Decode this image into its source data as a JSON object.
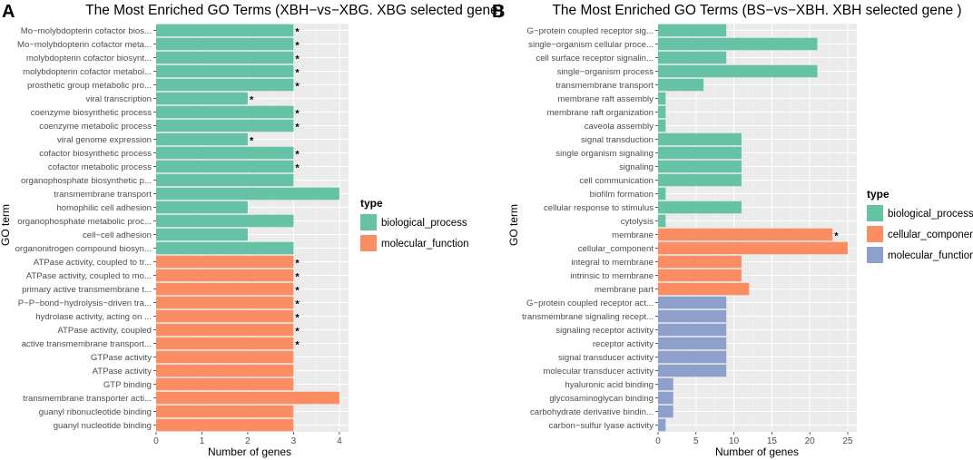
{
  "chart_data": [
    {
      "panel": "A",
      "type": "bar",
      "orientation": "horizontal",
      "title": "The Most Enriched GO Terms (XBH−vs−XBG. XBG selected gene)",
      "xlabel": "Number of genes",
      "ylabel": "GO term",
      "xlim": [
        0,
        4.2
      ],
      "xticks": [
        0,
        1,
        2,
        3,
        4
      ],
      "legend_title": "type",
      "legend": [
        {
          "label": "biological_process",
          "color": "#66C2A5"
        },
        {
          "label": "molecular_function",
          "color": "#FC8D62"
        }
      ],
      "bars": [
        {
          "term": "Mo−molybdopterin cofactor bios...",
          "value": 3,
          "type": "biological_process",
          "mark": "*"
        },
        {
          "term": "Mo−molybdopterin cofactor meta...",
          "value": 3,
          "type": "biological_process",
          "mark": "*"
        },
        {
          "term": "molybdopterin cofactor biosynt...",
          "value": 3,
          "type": "biological_process",
          "mark": "*"
        },
        {
          "term": "molybdopterin cofactor metabol...",
          "value": 3,
          "type": "biological_process",
          "mark": "*"
        },
        {
          "term": "prosthetic group metabolic pro...",
          "value": 3,
          "type": "biological_process",
          "mark": "*"
        },
        {
          "term": "viral transcription",
          "value": 2,
          "type": "biological_process",
          "mark": "*"
        },
        {
          "term": "coenzyme biosynthetic process",
          "value": 3,
          "type": "biological_process",
          "mark": "*"
        },
        {
          "term": "coenzyme metabolic process",
          "value": 3,
          "type": "biological_process",
          "mark": "*"
        },
        {
          "term": "viral genome expression",
          "value": 2,
          "type": "biological_process",
          "mark": "*"
        },
        {
          "term": "cofactor biosynthetic process",
          "value": 3,
          "type": "biological_process",
          "mark": "*"
        },
        {
          "term": "cofactor metabolic process",
          "value": 3,
          "type": "biological_process",
          "mark": "*"
        },
        {
          "term": "organophosphate biosynthetic p...",
          "value": 3,
          "type": "biological_process",
          "mark": ""
        },
        {
          "term": "transmembrane transport",
          "value": 4,
          "type": "biological_process",
          "mark": ""
        },
        {
          "term": "homophilic cell adhesion",
          "value": 2,
          "type": "biological_process",
          "mark": ""
        },
        {
          "term": "organophosphate metabolic proc...",
          "value": 3,
          "type": "biological_process",
          "mark": ""
        },
        {
          "term": "cell−cell adhesion",
          "value": 2,
          "type": "biological_process",
          "mark": ""
        },
        {
          "term": "organonitrogen compound biosyn...",
          "value": 3,
          "type": "biological_process",
          "mark": ""
        },
        {
          "term": "ATPase activity, coupled to tr...",
          "value": 3,
          "type": "molecular_function",
          "mark": "*"
        },
        {
          "term": "ATPase activity, coupled to mo...",
          "value": 3,
          "type": "molecular_function",
          "mark": "*"
        },
        {
          "term": "primary active transmembrane t...",
          "value": 3,
          "type": "molecular_function",
          "mark": "*"
        },
        {
          "term": "P−P−bond−hydrolysis−driven tra...",
          "value": 3,
          "type": "molecular_function",
          "mark": "*"
        },
        {
          "term": "hydrolase activity, acting on ...",
          "value": 3,
          "type": "molecular_function",
          "mark": "*"
        },
        {
          "term": "ATPase activity, coupled",
          "value": 3,
          "type": "molecular_function",
          "mark": "*"
        },
        {
          "term": "active transmembrane transport...",
          "value": 3,
          "type": "molecular_function",
          "mark": "*"
        },
        {
          "term": "GTPase activity",
          "value": 3,
          "type": "molecular_function",
          "mark": ""
        },
        {
          "term": "ATPase activity",
          "value": 3,
          "type": "molecular_function",
          "mark": ""
        },
        {
          "term": "GTP binding",
          "value": 3,
          "type": "molecular_function",
          "mark": ""
        },
        {
          "term": "transmembrane transporter acti...",
          "value": 4,
          "type": "molecular_function",
          "mark": ""
        },
        {
          "term": "guanyl ribonucleotide binding",
          "value": 3,
          "type": "molecular_function",
          "mark": ""
        },
        {
          "term": "guanyl nucleotide binding",
          "value": 3,
          "type": "molecular_function",
          "mark": ""
        }
      ]
    },
    {
      "panel": "B",
      "type": "bar",
      "orientation": "horizontal",
      "title": "The Most Enriched GO Terms (BS−vs−XBH. XBH selected gene )",
      "xlabel": "Number of genes",
      "ylabel": "GO term",
      "xlim": [
        0,
        26.2
      ],
      "xticks": [
        0,
        5,
        10,
        15,
        20,
        25
      ],
      "legend_title": "type",
      "legend": [
        {
          "label": "biological_process",
          "color": "#66C2A5"
        },
        {
          "label": "cellular_component",
          "color": "#FC8D62"
        },
        {
          "label": "molecular_function",
          "color": "#8DA0CB"
        }
      ],
      "bars": [
        {
          "term": "G−protein coupled receptor sig...",
          "value": 9,
          "type": "biological_process",
          "mark": ""
        },
        {
          "term": "single−organism cellular proce...",
          "value": 21,
          "type": "biological_process",
          "mark": ""
        },
        {
          "term": "cell surface receptor signalin...",
          "value": 9,
          "type": "biological_process",
          "mark": ""
        },
        {
          "term": "single−organism process",
          "value": 21,
          "type": "biological_process",
          "mark": ""
        },
        {
          "term": "transmembrane transport",
          "value": 6,
          "type": "biological_process",
          "mark": ""
        },
        {
          "term": "membrane raft assembly",
          "value": 1,
          "type": "biological_process",
          "mark": ""
        },
        {
          "term": "membrane raft organization",
          "value": 1,
          "type": "biological_process",
          "mark": ""
        },
        {
          "term": "caveola assembly",
          "value": 1,
          "type": "biological_process",
          "mark": ""
        },
        {
          "term": "signal transduction",
          "value": 11,
          "type": "biological_process",
          "mark": ""
        },
        {
          "term": "single organism signaling",
          "value": 11,
          "type": "biological_process",
          "mark": ""
        },
        {
          "term": "signaling",
          "value": 11,
          "type": "biological_process",
          "mark": ""
        },
        {
          "term": "cell communication",
          "value": 11,
          "type": "biological_process",
          "mark": ""
        },
        {
          "term": "biofilm formation",
          "value": 1,
          "type": "biological_process",
          "mark": ""
        },
        {
          "term": "cellular response to stimulus",
          "value": 11,
          "type": "biological_process",
          "mark": ""
        },
        {
          "term": "cytolysis",
          "value": 1,
          "type": "biological_process",
          "mark": ""
        },
        {
          "term": "membrane",
          "value": 23,
          "type": "cellular_component",
          "mark": "*"
        },
        {
          "term": "cellular_component",
          "value": 25,
          "type": "cellular_component",
          "mark": ""
        },
        {
          "term": "integral to membrane",
          "value": 11,
          "type": "cellular_component",
          "mark": ""
        },
        {
          "term": "intrinsic to membrane",
          "value": 11,
          "type": "cellular_component",
          "mark": ""
        },
        {
          "term": "membrane part",
          "value": 12,
          "type": "cellular_component",
          "mark": ""
        },
        {
          "term": "G−protein coupled receptor act...",
          "value": 9,
          "type": "molecular_function",
          "mark": ""
        },
        {
          "term": "transmembrane signaling recept...",
          "value": 9,
          "type": "molecular_function",
          "mark": ""
        },
        {
          "term": "signaling receptor activity",
          "value": 9,
          "type": "molecular_function",
          "mark": ""
        },
        {
          "term": "receptor activity",
          "value": 9,
          "type": "molecular_function",
          "mark": ""
        },
        {
          "term": "signal transducer activity",
          "value": 9,
          "type": "molecular_function",
          "mark": ""
        },
        {
          "term": "molecular transducer activity",
          "value": 9,
          "type": "molecular_function",
          "mark": ""
        },
        {
          "term": "hyaluronic acid binding",
          "value": 2,
          "type": "molecular_function",
          "mark": ""
        },
        {
          "term": "glycosaminoglycan binding",
          "value": 2,
          "type": "molecular_function",
          "mark": ""
        },
        {
          "term": "carbohydrate derivative bindin...",
          "value": 2,
          "type": "molecular_function",
          "mark": ""
        },
        {
          "term": "carbon−sulfur lyase activity",
          "value": 1,
          "type": "molecular_function",
          "mark": ""
        }
      ]
    }
  ]
}
